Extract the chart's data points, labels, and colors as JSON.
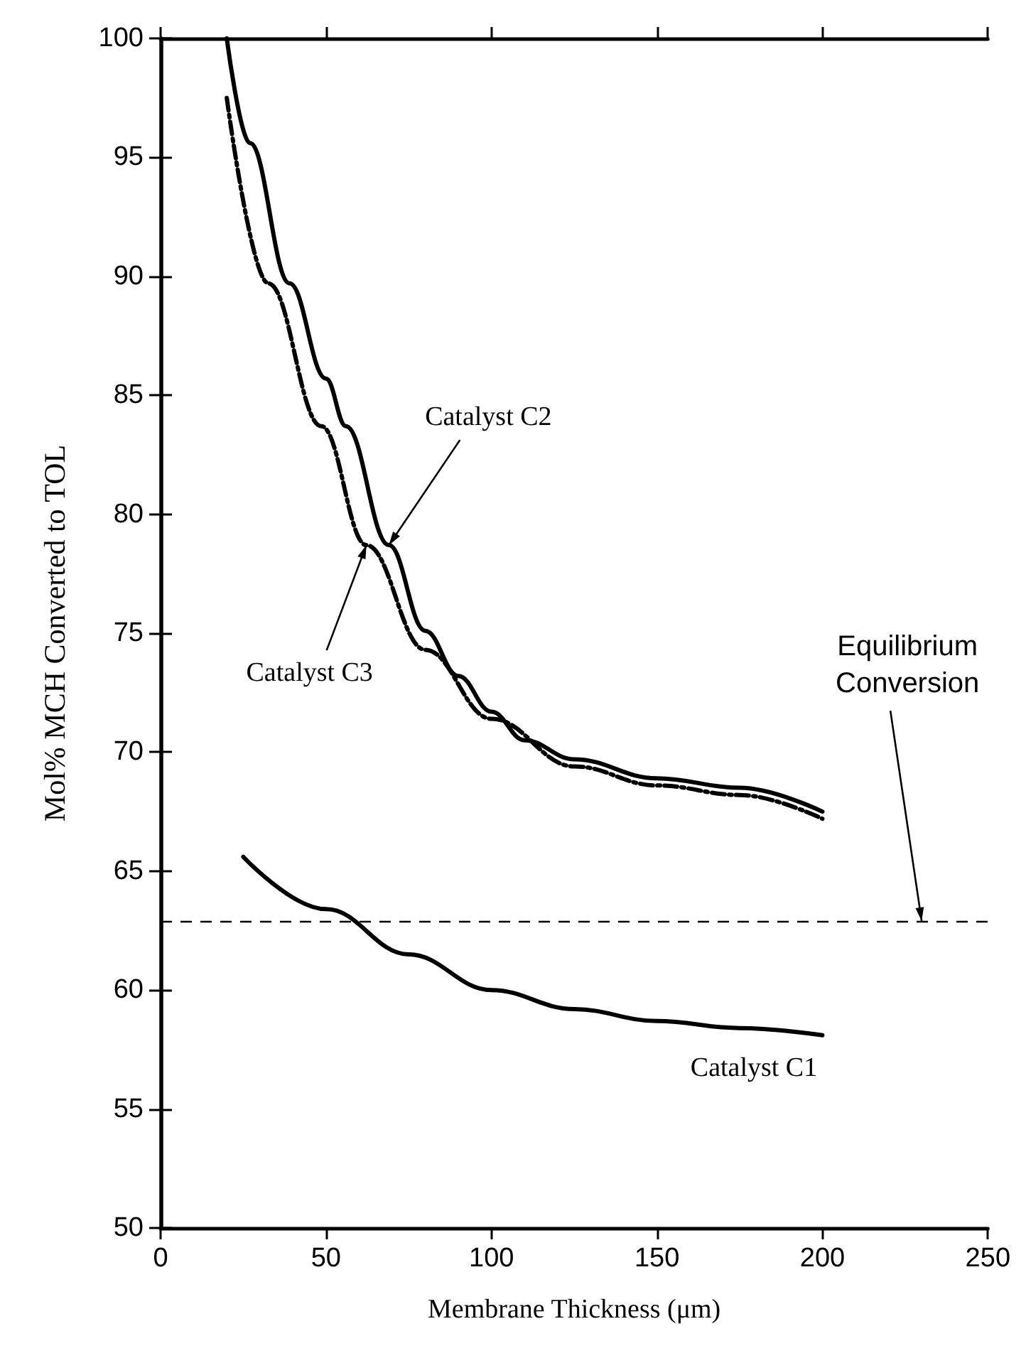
{
  "chart_data": {
    "type": "line",
    "xlabel": "Membrane Thickness (μm)",
    "ylabel": "Mol% MCH Converted to TOL",
    "xlim": [
      0,
      250
    ],
    "xticks": [
      0,
      50,
      100,
      150,
      200,
      250
    ],
    "ylim": [
      50,
      100
    ],
    "yticks": [
      50,
      55,
      60,
      65,
      70,
      75,
      80,
      85,
      90,
      95,
      100
    ],
    "grid": false,
    "legend": false,
    "marker": "none",
    "series": [
      {
        "name": "Catalyst C1",
        "color": "#000000",
        "line_style": "solid",
        "x": [
          25,
          50,
          75,
          100,
          125,
          150,
          175,
          200
        ],
        "values": [
          65.6,
          63.4,
          61.5,
          60.0,
          59.2,
          58.7,
          58.4,
          58.1
        ]
      },
      {
        "name": "Catalyst C2",
        "color": "#000000",
        "line_style": "solid",
        "x": [
          20,
          27,
          39,
          50,
          56,
          69,
          80,
          90,
          100,
          110,
          125,
          150,
          175,
          200
        ],
        "values": [
          100,
          95.6,
          89.7,
          85.7,
          83.7,
          78.7,
          75.1,
          73.2,
          71.7,
          70.5,
          69.7,
          68.9,
          68.5,
          67.5
        ]
      },
      {
        "name": "Catalyst C3",
        "color": "#000000",
        "line_style": "dashed",
        "x": [
          20,
          32.6,
          48.6,
          62.2,
          80,
          100,
          125,
          150,
          175,
          200
        ],
        "values": [
          97.5,
          89.7,
          83.7,
          78.7,
          74.3,
          71.4,
          69.4,
          68.6,
          68.2,
          67.2
        ]
      }
    ],
    "ref_lines": [
      {
        "axis": "y",
        "value": 62.9,
        "label": "Equilibrium\nConversion",
        "line_style": "dashed",
        "color": "#000000"
      }
    ]
  }
}
